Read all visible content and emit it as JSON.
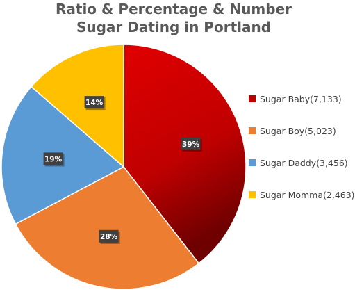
{
  "title_line1": "Ratio & Percentage & Number",
  "title_line2": "Sugar Dating in Portland",
  "chart_data": {
    "type": "pie",
    "title": "Ratio & Percentage & Number Sugar Dating in Portland",
    "slices": [
      {
        "label": "Sugar Baby",
        "legend": "Sugar Baby(7,133)",
        "value": 7133,
        "percent_label": "39%",
        "color": "#c00000"
      },
      {
        "label": "Sugar Boy",
        "legend": "Sugar Boy(5,023)",
        "value": 5023,
        "percent_label": "28%",
        "color": "#ed7d31"
      },
      {
        "label": "Sugar Daddy",
        "legend": "Sugar Daddy(3,456)",
        "value": 3456,
        "percent_label": "19%",
        "color": "#5b9bd5"
      },
      {
        "label": "Sugar Momma",
        "legend": "Sugar Momma(2,463)",
        "value": 2463,
        "percent_label": "14%",
        "color": "#ffc000"
      }
    ],
    "legend_position": "right"
  }
}
